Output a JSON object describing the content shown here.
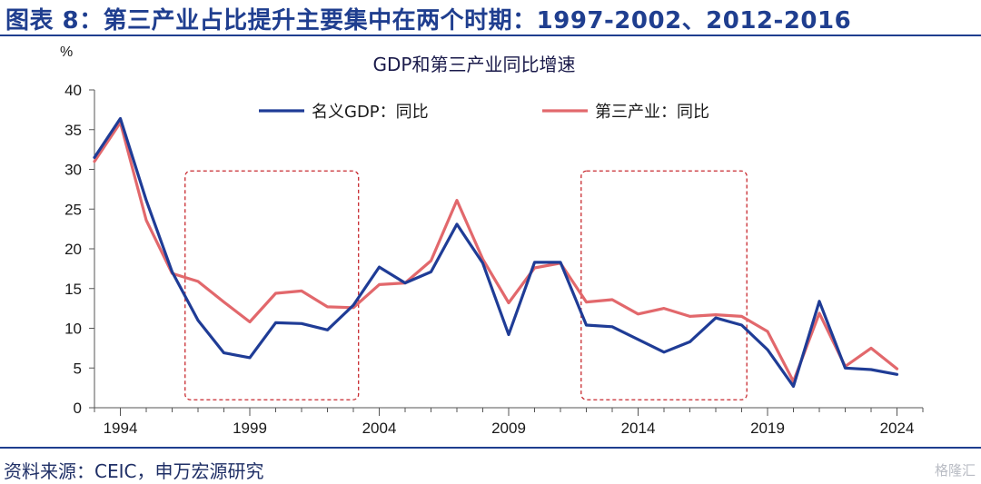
{
  "header": {
    "title": "图表 8：第三产业占比提升主要集中在两个时期：1997-2002、2012-2016"
  },
  "footer": {
    "source": "资料来源：CEIC，申万宏源研究",
    "watermark": "格隆汇"
  },
  "chart_data": {
    "type": "line",
    "title": "GDP和第三产业同比增速",
    "ylabel": "%",
    "xlabel": "",
    "ylim": [
      0,
      40
    ],
    "yticks": [
      0,
      5,
      10,
      15,
      20,
      25,
      30,
      35,
      40
    ],
    "xlim": [
      1993,
      2025
    ],
    "xticks": [
      1994,
      1999,
      2004,
      2009,
      2014,
      2019,
      2024
    ],
    "grid": false,
    "legend_position": "top",
    "highlight_periods": [
      [
        1996.5,
        2003.2
      ],
      [
        2011.8,
        2018.2
      ]
    ],
    "x": [
      1993,
      1994,
      1995,
      1996,
      1997,
      1998,
      1999,
      2000,
      2001,
      2002,
      2003,
      2004,
      2005,
      2006,
      2007,
      2008,
      2009,
      2010,
      2011,
      2012,
      2013,
      2014,
      2015,
      2016,
      2017,
      2018,
      2019,
      2020,
      2021,
      2022,
      2023,
      2024
    ],
    "series": [
      {
        "name": "名义GDP：同比",
        "color": "#1f3c96",
        "values": [
          31.5,
          36.4,
          26.1,
          17.1,
          11.0,
          6.9,
          6.3,
          10.7,
          10.6,
          9.8,
          12.9,
          17.7,
          15.7,
          17.1,
          23.1,
          18.2,
          9.2,
          18.3,
          18.3,
          10.4,
          10.2,
          8.6,
          7.0,
          8.3,
          11.3,
          10.4,
          7.3,
          2.7,
          13.4,
          5.0,
          4.8,
          4.2
        ]
      },
      {
        "name": "第三产业：同比",
        "color": "#e2686c",
        "values": [
          31.0,
          35.9,
          23.6,
          16.9,
          15.9,
          13.3,
          10.8,
          14.4,
          14.7,
          12.7,
          12.6,
          15.5,
          15.7,
          18.5,
          26.1,
          18.7,
          13.2,
          17.6,
          18.2,
          13.3,
          13.6,
          11.8,
          12.5,
          11.5,
          11.7,
          11.5,
          9.6,
          3.3,
          11.9,
          5.2,
          7.5,
          4.9
        ]
      }
    ]
  }
}
